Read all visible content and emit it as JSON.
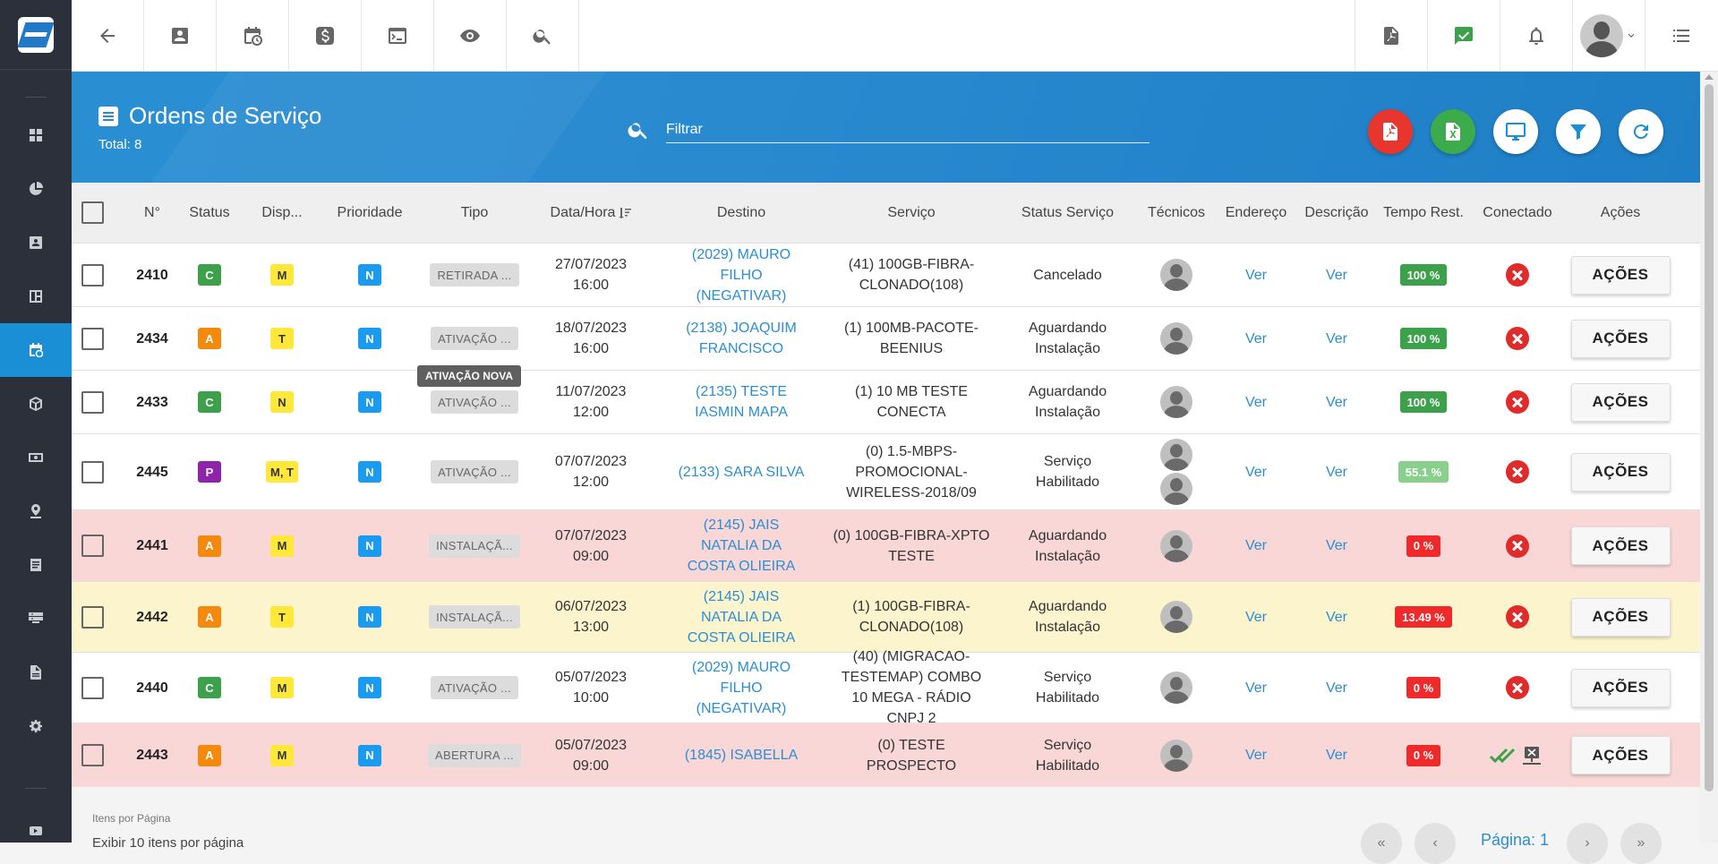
{
  "sidebar": {
    "items": [
      {
        "icon": "dashboard-icon"
      },
      {
        "icon": "pie-chart-icon"
      },
      {
        "icon": "contact-card-icon"
      },
      {
        "icon": "board-icon"
      },
      {
        "icon": "calendar-clock-icon",
        "active": true
      },
      {
        "icon": "box-icon"
      },
      {
        "icon": "money-icon"
      },
      {
        "icon": "map-pin-icon"
      },
      {
        "icon": "document-list-icon"
      },
      {
        "icon": "server-icon"
      },
      {
        "icon": "file-icon"
      },
      {
        "icon": "gear-icon"
      },
      {
        "icon": "video-icon"
      }
    ]
  },
  "topbar": {
    "left_buttons": [
      "back-arrow-icon",
      "contact-card-icon",
      "calendar-clock-icon",
      "dollar-icon",
      "terminal-icon",
      "eye-icon",
      "search-icon"
    ],
    "right_buttons": [
      "pdf-icon",
      "chat-check-icon",
      "bell-icon",
      "avatar",
      "list-menu-icon"
    ]
  },
  "header": {
    "title": "Ordens de Serviço",
    "total": "Total: 8",
    "filter_placeholder": "Filtrar",
    "buttons": [
      {
        "name": "pdf-export-button",
        "icon": "pdf-icon",
        "color": "#e8362f"
      },
      {
        "name": "excel-export-button",
        "icon": "excel-icon",
        "color": "#3cab4b"
      },
      {
        "name": "monitor-button",
        "icon": "monitor-icon",
        "color": "#ffffff"
      },
      {
        "name": "filter-button",
        "icon": "filter-icon",
        "color": "#ffffff"
      },
      {
        "name": "refresh-button",
        "icon": "refresh-icon",
        "color": "#ffffff"
      }
    ]
  },
  "table": {
    "columns": [
      "N°",
      "Status",
      "Disp...",
      "Prioridade",
      "Tipo",
      "Data/Hora",
      "Destino",
      "Serviço",
      "Status Serviço",
      "Técnicos",
      "Endereço",
      "Descrição",
      "Tempo Rest.",
      "Conectado",
      "Ações"
    ],
    "rows": [
      {
        "n": "2410",
        "status": "C",
        "status_color": "g",
        "disp": "M",
        "prioridade": "N",
        "tipo": "RETIRADA ...",
        "data": "27/07/2023",
        "hora": "16:00",
        "destino": "(2029) MAURO FILHO (NEGATIVAR)",
        "servico": "(41) 100GB-FIBRA-CLONADO(108)",
        "status_servico": "Cancelado",
        "tecnicos": 1,
        "endereco": "Ver",
        "descricao": "Ver",
        "tempo": "100 %",
        "tempo_level": "full",
        "conectado": "x",
        "acoes": "AÇÕES",
        "bg": "#ffffff"
      },
      {
        "n": "2434",
        "status": "A",
        "status_color": "o",
        "disp": "T",
        "prioridade": "N",
        "tipo": "ATIVAÇÃO ...",
        "data": "18/07/2023",
        "hora": "16:00",
        "destino": "(2138) JOAQUIM FRANCISCO",
        "servico": "(1) 100MB-PACOTE-BEENIUS",
        "status_servico": "Aguardando Instalação",
        "tecnicos": 1,
        "endereco": "Ver",
        "descricao": "Ver",
        "tempo": "100 %",
        "tempo_level": "full",
        "conectado": "x",
        "acoes": "AÇÕES",
        "bg": "#ffffff"
      },
      {
        "n": "2433",
        "status": "C",
        "status_color": "g",
        "disp": "N",
        "prioridade": "N",
        "tipo": "ATIVAÇÃO ...",
        "data": "11/07/2023",
        "hora": "12:00",
        "destino": "(2135) TESTE IASMIN MAPA",
        "servico": "(1) 10 MB TESTE CONECTA",
        "status_servico": "Aguardando Instalação",
        "tecnicos": 1,
        "endereco": "Ver",
        "descricao": "Ver",
        "tempo": "100 %",
        "tempo_level": "full",
        "conectado": "x",
        "acoes": "AÇÕES",
        "bg": "#ffffff"
      },
      {
        "n": "2445",
        "status": "P",
        "status_color": "p",
        "disp": "M, T",
        "prioridade": "N",
        "tipo": "ATIVAÇÃO ...",
        "data": "07/07/2023",
        "hora": "12:00",
        "destino": "(2133) SARA SILVA",
        "servico": "(0) 1.5-MBPS-PROMOCIONAL-WIRELESS-2018/09",
        "status_servico": "Serviço Habilitado",
        "tecnicos": 2,
        "endereco": "Ver",
        "descricao": "Ver",
        "tempo": "55.1 %",
        "tempo_level": "mid",
        "conectado": "x",
        "acoes": "AÇÕES",
        "bg": "#ffffff"
      },
      {
        "n": "2441",
        "status": "A",
        "status_color": "o",
        "disp": "M",
        "prioridade": "N",
        "tipo": "INSTALAÇÃ...",
        "data": "07/07/2023",
        "hora": "09:00",
        "destino": "(2145) JAIS NATALIA DA COSTA OLIEIRA",
        "servico": "(0) 100GB-FIBRA-XPTO TESTE",
        "status_servico": "Aguardando Instalação",
        "tecnicos": 1,
        "endereco": "Ver",
        "descricao": "Ver",
        "tempo": "0 %",
        "tempo_level": "red",
        "conectado": "x",
        "acoes": "AÇÕES",
        "bg": "#f8d7d6"
      },
      {
        "n": "2442",
        "status": "A",
        "status_color": "o",
        "disp": "T",
        "prioridade": "N",
        "tipo": "INSTALAÇÃ...",
        "data": "06/07/2023",
        "hora": "13:00",
        "destino": "(2145) JAIS NATALIA DA COSTA OLIEIRA",
        "servico": "(1) 100GB-FIBRA-CLONADO(108)",
        "status_servico": "Aguardando Instalação",
        "tecnicos": 1,
        "endereco": "Ver",
        "descricao": "Ver",
        "tempo": "13.49 %",
        "tempo_level": "red",
        "conectado": "x",
        "acoes": "AÇÕES",
        "bg": "#fcf4cc"
      },
      {
        "n": "2440",
        "status": "C",
        "status_color": "g",
        "disp": "M",
        "prioridade": "N",
        "tipo": "ATIVAÇÃO ...",
        "data": "05/07/2023",
        "hora": "10:00",
        "destino": "(2029) MAURO FILHO (NEGATIVAR)",
        "servico": "(40) (MIGRACAO-TESTEMAP) COMBO 10 MEGA - RÁDIO CNPJ 2",
        "status_servico": "Serviço Habilitado",
        "tecnicos": 1,
        "endereco": "Ver",
        "descricao": "Ver",
        "tempo": "0 %",
        "tempo_level": "red",
        "conectado": "x",
        "acoes": "AÇÕES",
        "bg": "#ffffff"
      },
      {
        "n": "2443",
        "status": "A",
        "status_color": "o",
        "disp": "M",
        "prioridade": "N",
        "tipo": "ABERTURA ...",
        "data": "05/07/2023",
        "hora": "09:00",
        "destino": "(1845) ISABELLA",
        "servico": "(0) TESTE PROSPECTO",
        "status_servico": "Serviço Habilitado",
        "tecnicos": 1,
        "endereco": "Ver",
        "descricao": "Ver",
        "tempo": "0 %",
        "tempo_level": "red",
        "conectado": "check",
        "acoes": "AÇÕES",
        "bg": "#f8d7d6"
      }
    ]
  },
  "tooltip": "ATIVAÇÃO NOVA",
  "footer": {
    "itens_label": "Itens por Página",
    "itens_text": "Exibir 10 itens por página",
    "page_label": "Página: 1",
    "nav": [
      "«",
      "‹",
      "›",
      "»"
    ]
  },
  "colors": {
    "accent": "#2a8ad0",
    "active_sidebar": "#1a8fd6",
    "link": "#2b8ed5"
  }
}
